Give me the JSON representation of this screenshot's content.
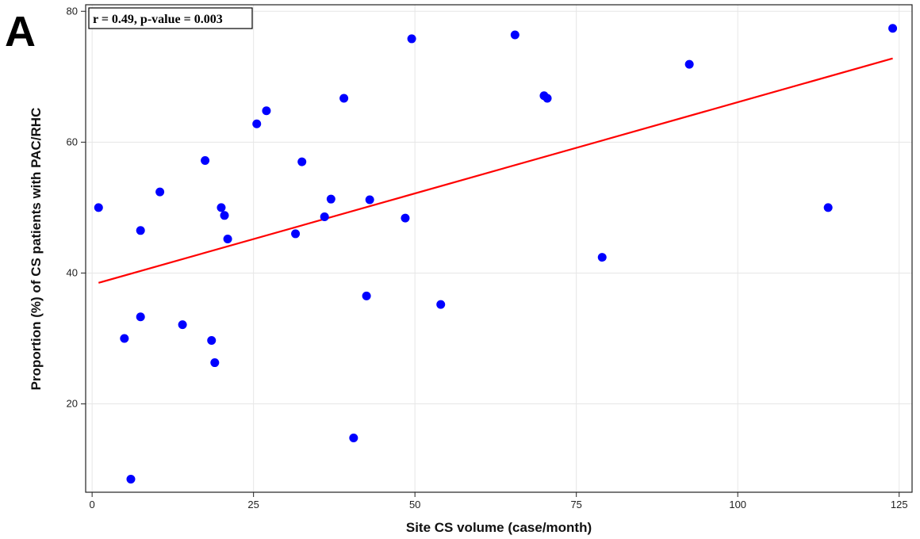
{
  "panel_label": "A",
  "chart_data": {
    "type": "scatter",
    "title": "",
    "annotation": "r = 0.49, p-value = 0.003",
    "xlabel": "Site CS volume (case/month)",
    "ylabel": "Proportion (%) of CS patients with PAC/RHC",
    "xlim": [
      -1,
      127
    ],
    "ylim": [
      6.5,
      81
    ],
    "xticks": [
      0,
      25,
      50,
      75,
      100,
      125
    ],
    "yticks": [
      20,
      40,
      60,
      80
    ],
    "grid": true,
    "points": [
      {
        "x": 1,
        "y": 50
      },
      {
        "x": 5,
        "y": 30
      },
      {
        "x": 6,
        "y": 8.5
      },
      {
        "x": 7.5,
        "y": 46.5
      },
      {
        "x": 7.5,
        "y": 33.3
      },
      {
        "x": 10.5,
        "y": 52.4
      },
      {
        "x": 14,
        "y": 32.1
      },
      {
        "x": 17.5,
        "y": 57.2
      },
      {
        "x": 18.5,
        "y": 29.7
      },
      {
        "x": 19,
        "y": 26.3
      },
      {
        "x": 20,
        "y": 50
      },
      {
        "x": 20.5,
        "y": 48.8
      },
      {
        "x": 21,
        "y": 45.2
      },
      {
        "x": 25.5,
        "y": 62.8
      },
      {
        "x": 27,
        "y": 64.8
      },
      {
        "x": 31.5,
        "y": 46
      },
      {
        "x": 32.5,
        "y": 57
      },
      {
        "x": 36,
        "y": 48.6
      },
      {
        "x": 37,
        "y": 51.3
      },
      {
        "x": 39,
        "y": 66.7
      },
      {
        "x": 40.5,
        "y": 14.8
      },
      {
        "x": 42.5,
        "y": 36.5
      },
      {
        "x": 43,
        "y": 51.2
      },
      {
        "x": 48.5,
        "y": 48.4
      },
      {
        "x": 49.5,
        "y": 75.8
      },
      {
        "x": 54,
        "y": 35.2
      },
      {
        "x": 65.5,
        "y": 76.4
      },
      {
        "x": 70,
        "y": 67.1
      },
      {
        "x": 70.5,
        "y": 66.7
      },
      {
        "x": 79,
        "y": 42.4
      },
      {
        "x": 92.5,
        "y": 71.9
      },
      {
        "x": 114,
        "y": 50
      },
      {
        "x": 124,
        "y": 77.4
      }
    ],
    "fit_line": {
      "x": [
        1,
        124
      ],
      "y": [
        38.5,
        72.8
      ]
    },
    "colors": {
      "points": "#0000ff",
      "fit_line": "#ff0000"
    }
  }
}
